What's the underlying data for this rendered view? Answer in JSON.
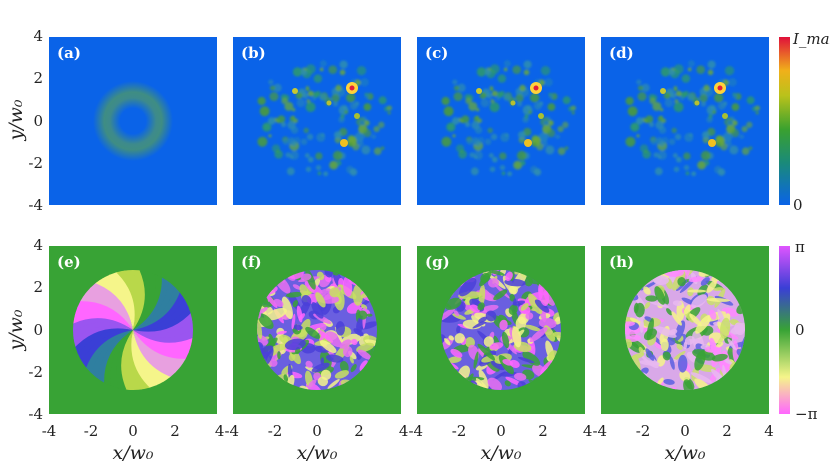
{
  "figure": {
    "panel_labels": [
      "(a)",
      "(b)",
      "(c)",
      "(d)",
      "(e)",
      "(f)",
      "(g)",
      "(h)"
    ],
    "x_axis_label": "x/w₀",
    "y_axis_label": "y/w₀",
    "x_ticks": [
      "-4",
      "-2",
      "0",
      "2",
      "4"
    ],
    "y_ticks": [
      "4",
      "2",
      "0",
      "-2",
      "-4"
    ],
    "intensity_colorbar": {
      "top_label": "I_max",
      "bottom_label": "0"
    },
    "phase_colorbar": {
      "top_label": "π",
      "mid_label": "0",
      "bottom_label": "−π"
    },
    "colors": {
      "intensity_background": "#0a63e8",
      "phase_background": "#38a335",
      "ring": "#3d8a8c"
    }
  },
  "chart_data": {
    "type": "heatmap",
    "rows": [
      "intensity",
      "phase"
    ],
    "xlim": [
      -4,
      4
    ],
    "ylim": [
      -4,
      4
    ],
    "intensity_range": [
      "0",
      "I_max"
    ],
    "phase_range": [
      "-π",
      "π"
    ]
  }
}
